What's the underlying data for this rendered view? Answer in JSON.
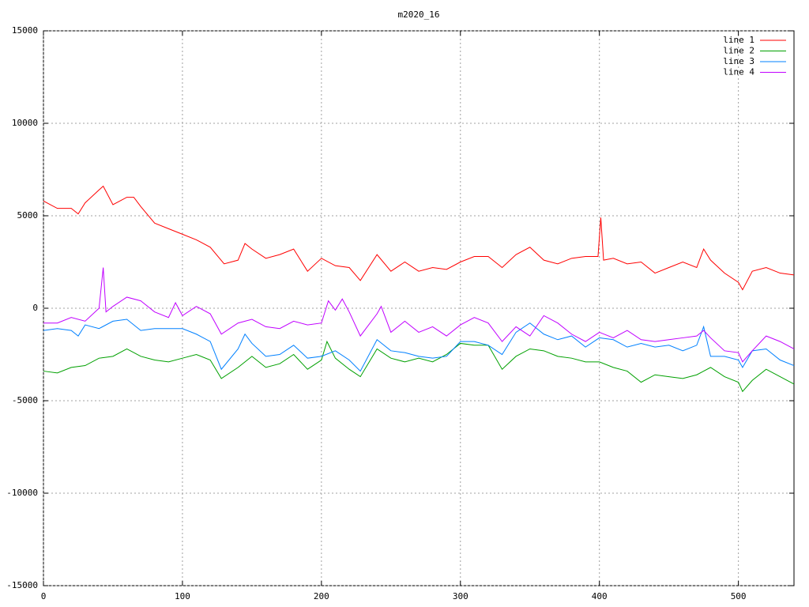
{
  "chart_data": {
    "type": "line",
    "title": "m2020_16",
    "xlim": [
      0,
      540
    ],
    "xticks": [
      0,
      100,
      200,
      300,
      400,
      500
    ],
    "ylim": [
      -15000,
      15000
    ],
    "yticks": [
      -15000,
      -10000,
      -5000,
      0,
      5000,
      10000,
      15000
    ],
    "grid": true,
    "legend": "top-right",
    "series": [
      {
        "name": "line 1",
        "color": "#ff0000",
        "x": [
          0,
          10,
          20,
          25,
          30,
          40,
          43,
          50,
          60,
          65,
          70,
          80,
          90,
          100,
          110,
          120,
          130,
          140,
          145,
          150,
          160,
          170,
          180,
          190,
          200,
          210,
          220,
          228,
          240,
          250,
          260,
          270,
          280,
          290,
          300,
          310,
          320,
          330,
          340,
          350,
          360,
          370,
          380,
          390,
          399,
          401,
          403,
          410,
          420,
          430,
          440,
          450,
          460,
          470,
          475,
          480,
          490,
          500,
          503,
          510,
          520,
          530,
          540
        ],
        "values": [
          5800,
          5400,
          5400,
          5100,
          5700,
          6400,
          6600,
          5600,
          6000,
          6000,
          5500,
          4600,
          4300,
          4000,
          3700,
          3300,
          2400,
          2600,
          3500,
          3200,
          2700,
          2900,
          3200,
          2000,
          2700,
          2300,
          2200,
          1500,
          2900,
          2000,
          2500,
          2000,
          2200,
          2100,
          2500,
          2800,
          2800,
          2200,
          2900,
          3300,
          2600,
          2400,
          2700,
          2800,
          2800,
          4900,
          2600,
          2700,
          2400,
          2500,
          1900,
          2200,
          2500,
          2200,
          3200,
          2600,
          1900,
          1400,
          1000,
          2000,
          2200,
          1900,
          1800
        ]
      },
      {
        "name": "line 2",
        "color": "#00a000",
        "x": [
          0,
          10,
          20,
          30,
          40,
          50,
          60,
          70,
          80,
          90,
          100,
          110,
          120,
          128,
          140,
          150,
          160,
          170,
          180,
          190,
          200,
          204,
          210,
          220,
          228,
          240,
          250,
          260,
          270,
          280,
          290,
          300,
          310,
          320,
          330,
          340,
          350,
          360,
          370,
          380,
          390,
          400,
          410,
          420,
          430,
          440,
          450,
          460,
          470,
          480,
          490,
          500,
          503,
          510,
          520,
          530,
          540
        ],
        "values": [
          -3400,
          -3500,
          -3200,
          -3100,
          -2700,
          -2600,
          -2200,
          -2600,
          -2800,
          -2900,
          -2700,
          -2500,
          -2800,
          -3800,
          -3200,
          -2600,
          -3200,
          -3000,
          -2500,
          -3300,
          -2800,
          -1800,
          -2700,
          -3300,
          -3700,
          -2200,
          -2700,
          -2900,
          -2700,
          -2900,
          -2500,
          -1900,
          -2000,
          -2000,
          -3300,
          -2600,
          -2200,
          -2300,
          -2600,
          -2700,
          -2900,
          -2900,
          -3200,
          -3400,
          -4000,
          -3600,
          -3700,
          -3800,
          -3600,
          -3200,
          -3700,
          -4000,
          -4500,
          -3900,
          -3300,
          -3700,
          -4100
        ]
      },
      {
        "name": "line 3",
        "color": "#0080ff",
        "x": [
          0,
          10,
          20,
          25,
          30,
          40,
          50,
          60,
          70,
          80,
          90,
          100,
          110,
          120,
          128,
          140,
          145,
          150,
          160,
          170,
          180,
          190,
          200,
          210,
          220,
          228,
          240,
          250,
          260,
          270,
          280,
          290,
          300,
          310,
          320,
          330,
          340,
          350,
          360,
          370,
          380,
          390,
          400,
          410,
          420,
          430,
          440,
          450,
          460,
          470,
          475,
          480,
          490,
          500,
          503,
          510,
          520,
          530,
          540
        ],
        "values": [
          -1200,
          -1100,
          -1200,
          -1500,
          -900,
          -1100,
          -700,
          -600,
          -1200,
          -1100,
          -1100,
          -1100,
          -1400,
          -1800,
          -3300,
          -2200,
          -1400,
          -1900,
          -2600,
          -2500,
          -2000,
          -2700,
          -2600,
          -2300,
          -2800,
          -3400,
          -1700,
          -2300,
          -2400,
          -2600,
          -2700,
          -2600,
          -1800,
          -1800,
          -2000,
          -2500,
          -1300,
          -800,
          -1400,
          -1700,
          -1500,
          -2100,
          -1600,
          -1700,
          -2100,
          -1900,
          -2100,
          -2000,
          -2300,
          -2000,
          -1000,
          -2600,
          -2600,
          -2800,
          -3200,
          -2300,
          -2200,
          -2800,
          -3100
        ]
      },
      {
        "name": "line 4",
        "color": "#c000ff",
        "x": [
          0,
          10,
          20,
          30,
          40,
          43,
          45,
          50,
          60,
          70,
          80,
          90,
          95,
          100,
          110,
          120,
          128,
          140,
          150,
          160,
          170,
          180,
          190,
          200,
          205,
          210,
          215,
          220,
          228,
          240,
          243,
          250,
          260,
          270,
          280,
          290,
          300,
          310,
          320,
          330,
          340,
          350,
          360,
          370,
          380,
          390,
          400,
          410,
          420,
          430,
          440,
          450,
          460,
          470,
          475,
          480,
          490,
          500,
          503,
          510,
          520,
          530,
          540
        ],
        "values": [
          -800,
          -800,
          -500,
          -700,
          0,
          2200,
          -200,
          100,
          600,
          400,
          -200,
          -500,
          300,
          -400,
          100,
          -300,
          -1400,
          -800,
          -600,
          -1000,
          -1100,
          -700,
          -900,
          -800,
          400,
          -100,
          500,
          -200,
          -1500,
          -300,
          100,
          -1300,
          -700,
          -1300,
          -1000,
          -1500,
          -900,
          -500,
          -800,
          -1800,
          -1000,
          -1500,
          -400,
          -800,
          -1400,
          -1800,
          -1300,
          -1600,
          -1200,
          -1700,
          -1800,
          -1700,
          -1600,
          -1500,
          -1200,
          -1600,
          -2300,
          -2400,
          -2900,
          -2300,
          -1500,
          -1800,
          -2200
        ]
      }
    ]
  }
}
